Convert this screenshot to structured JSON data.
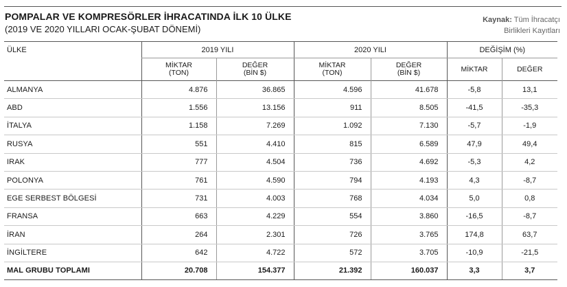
{
  "header": {
    "title": "POMPALAR VE KOMPRESÖRLER İHRACATINDA İLK 10 ÜLKE",
    "subtitle": "(2019 VE 2020 YILLARI OCAK-ŞUBAT DÖNEMİ)",
    "source_label": "Kaynak:",
    "source_text_line1": "Tüm İhracatçı",
    "source_text_line2": "Birlikleri Kayıtları"
  },
  "table": {
    "country_header": "ÜLKE",
    "group_2019": "2019 YILI",
    "group_2020": "2020 YILI",
    "group_change": "DEĞİŞİM (%)",
    "sub_miktar_l1": "MİKTAR",
    "sub_miktar_l2": "(TON)",
    "sub_deger_l1": "DEĞER",
    "sub_deger_l2": "(BİN $)",
    "sub_change_miktar": "MİKTAR",
    "sub_change_deger": "DEĞER",
    "rows": [
      {
        "country": "ALMANYA",
        "m2019": "4.876",
        "d2019": "36.865",
        "m2020": "4.596",
        "d2020": "41.678",
        "cm": "-5,8",
        "cd": "13,1"
      },
      {
        "country": "ABD",
        "m2019": "1.556",
        "d2019": "13.156",
        "m2020": "911",
        "d2020": "8.505",
        "cm": "-41,5",
        "cd": "-35,3"
      },
      {
        "country": "İTALYA",
        "m2019": "1.158",
        "d2019": "7.269",
        "m2020": "1.092",
        "d2020": "7.130",
        "cm": "-5,7",
        "cd": "-1,9"
      },
      {
        "country": "RUSYA",
        "m2019": "551",
        "d2019": "4.410",
        "m2020": "815",
        "d2020": "6.589",
        "cm": "47,9",
        "cd": "49,4"
      },
      {
        "country": "IRAK",
        "m2019": "777",
        "d2019": "4.504",
        "m2020": "736",
        "d2020": "4.692",
        "cm": "-5,3",
        "cd": "4,2"
      },
      {
        "country": "POLONYA",
        "m2019": "761",
        "d2019": "4.590",
        "m2020": "794",
        "d2020": "4.193",
        "cm": "4,3",
        "cd": "-8,7"
      },
      {
        "country": "EGE SERBEST BÖLGESİ",
        "m2019": "731",
        "d2019": "4.003",
        "m2020": "768",
        "d2020": "4.034",
        "cm": "5,0",
        "cd": "0,8"
      },
      {
        "country": "FRANSA",
        "m2019": "663",
        "d2019": "4.229",
        "m2020": "554",
        "d2020": "3.860",
        "cm": "-16,5",
        "cd": "-8,7"
      },
      {
        "country": "İRAN",
        "m2019": "264",
        "d2019": "2.301",
        "m2020": "726",
        "d2020": "3.765",
        "cm": "174,8",
        "cd": "63,7"
      },
      {
        "country": "İNGİLTERE",
        "m2019": "642",
        "d2019": "4.722",
        "m2020": "572",
        "d2020": "3.705",
        "cm": "-10,9",
        "cd": "-21,5"
      }
    ],
    "total": {
      "country": "MAL GRUBU TOPLAMI",
      "m2019": "20.708",
      "d2019": "154.377",
      "m2020": "21.392",
      "d2020": "160.037",
      "cm": "3,3",
      "cd": "3,7"
    }
  }
}
